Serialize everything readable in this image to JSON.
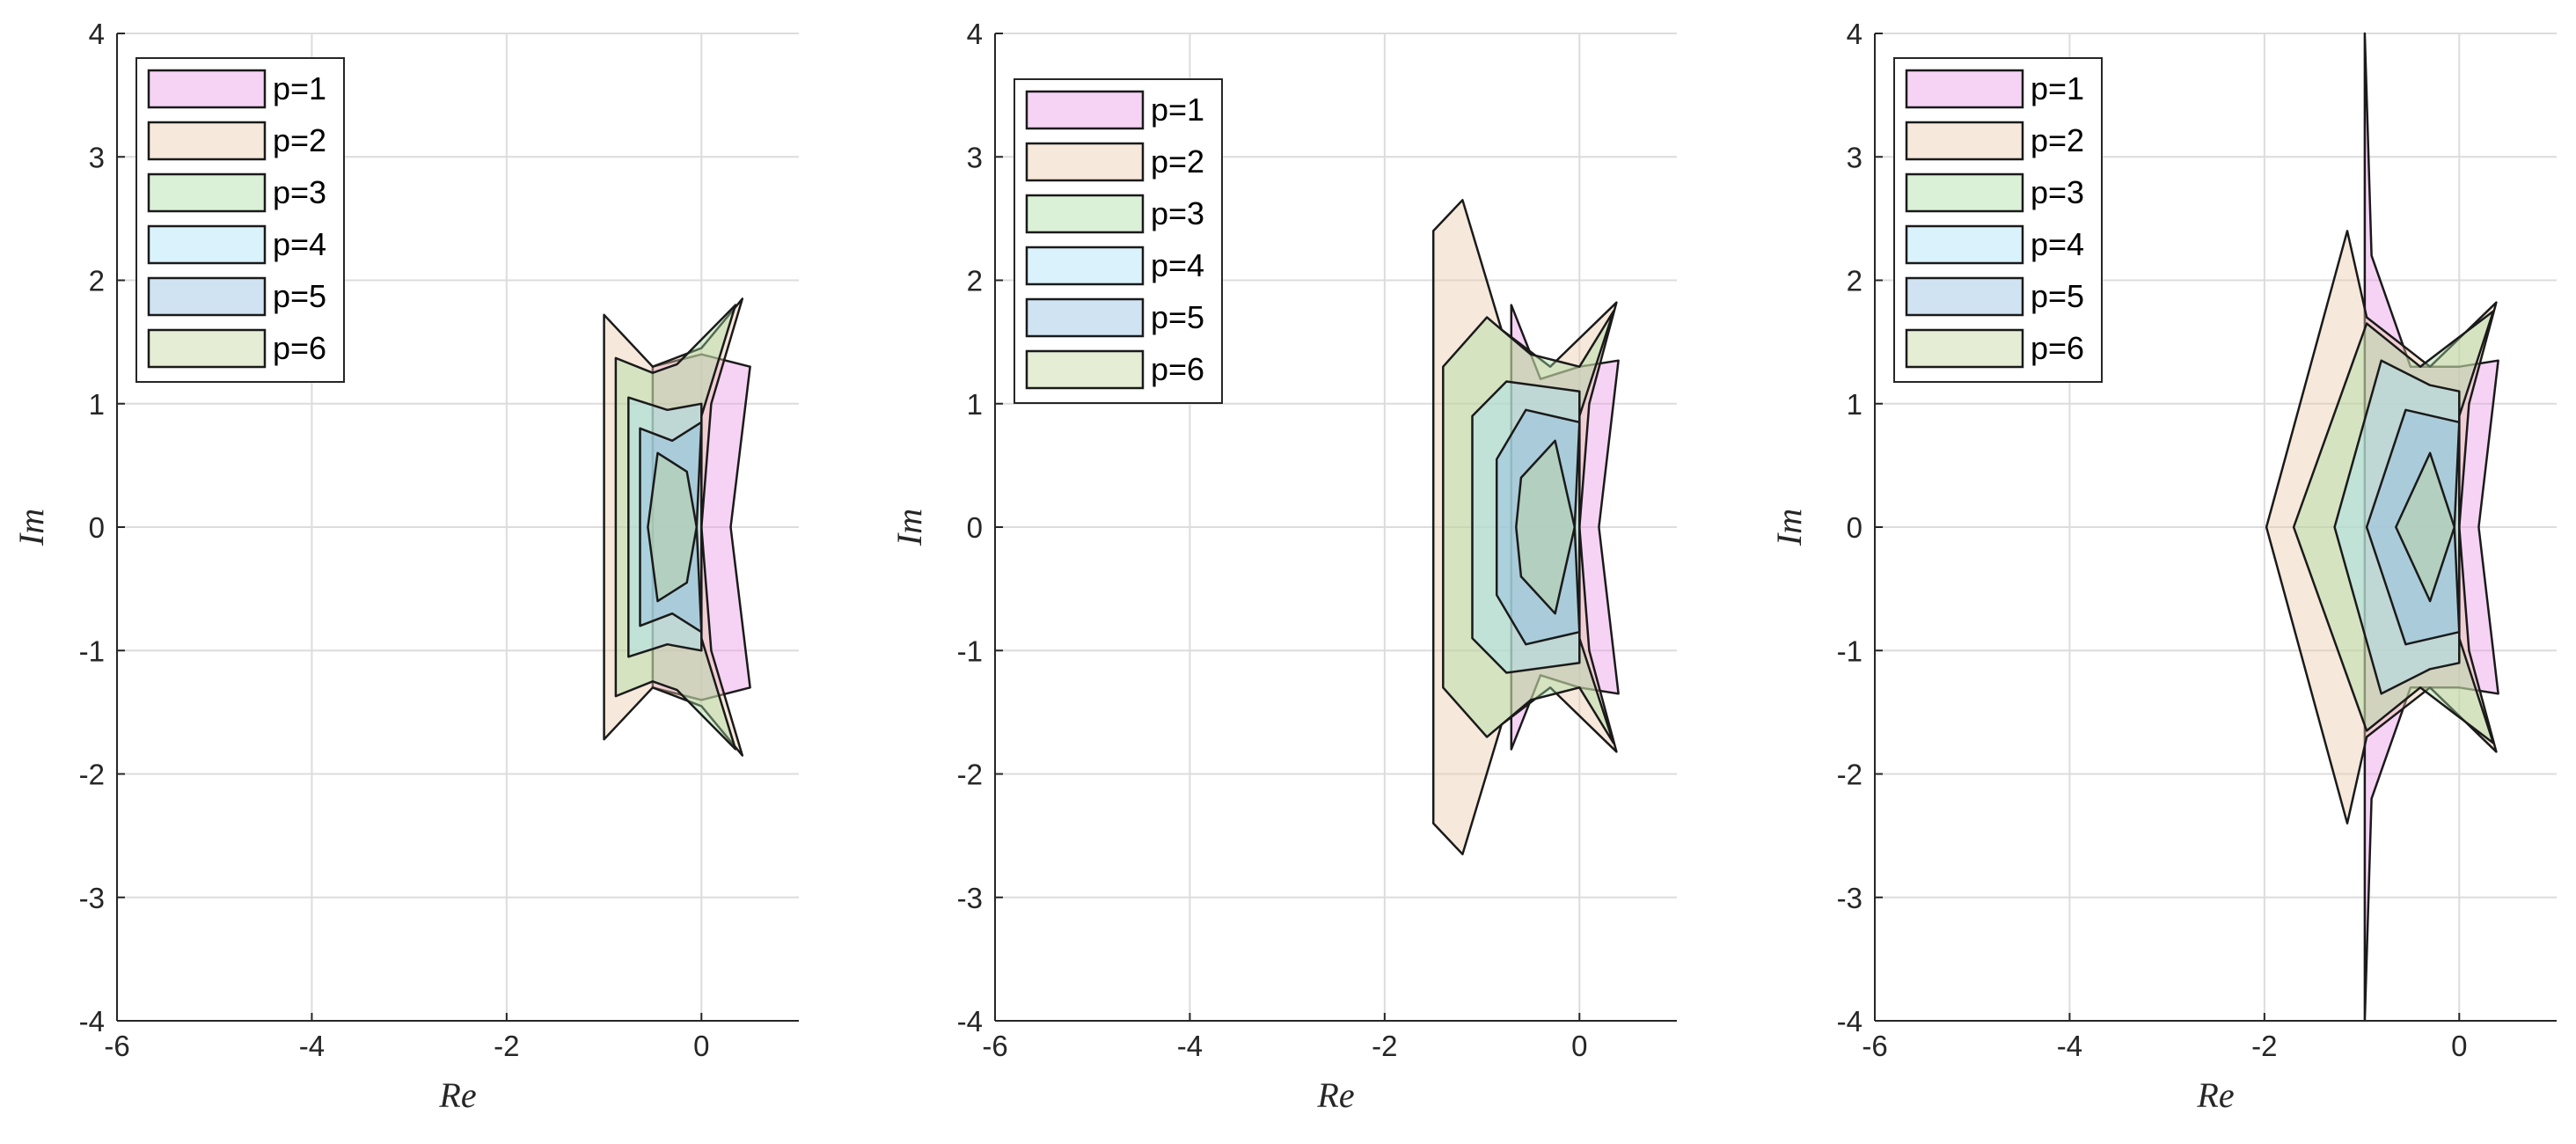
{
  "chart_data": [
    {
      "type": "area",
      "xlabel": "Re",
      "ylabel": "Im",
      "xlim": [
        -6,
        1
      ],
      "ylim": [
        -4,
        4
      ],
      "xticks": [
        -6,
        -4,
        -2,
        0
      ],
      "yticks": [
        -4,
        -3,
        -2,
        -1,
        0,
        1,
        2,
        3,
        4
      ],
      "grid": true,
      "legend_position": "top-left",
      "series": [
        {
          "name": "p=1",
          "color": "#ea95e5",
          "region": [
            [
              -0.5,
              1.3
            ],
            [
              0,
              1.4
            ],
            [
              0.5,
              1.3
            ],
            [
              0.3,
              0
            ],
            [
              0.5,
              -1.3
            ],
            [
              0,
              -1.4
            ],
            [
              -0.5,
              -1.3
            ]
          ]
        },
        {
          "name": "p=2",
          "color": "#e9c9a8",
          "region": [
            [
              -1,
              1.72
            ],
            [
              -0.5,
              1.3
            ],
            [
              0,
              1.45
            ],
            [
              0.42,
              1.85
            ],
            [
              0.1,
              1
            ],
            [
              0,
              0
            ],
            [
              0.1,
              -1
            ],
            [
              0.42,
              -1.85
            ],
            [
              0,
              -1.45
            ],
            [
              -0.5,
              -1.3
            ],
            [
              -1,
              -1.72
            ]
          ]
        },
        {
          "name": "p=3",
          "color": "#a8dba0",
          "region": [
            [
              -0.88,
              1.37
            ],
            [
              -0.5,
              1.25
            ],
            [
              -0.25,
              1.32
            ],
            [
              0.35,
              1.8
            ],
            [
              0,
              0.9
            ],
            [
              0,
              -0.9
            ],
            [
              0.35,
              -1.8
            ],
            [
              -0.25,
              -1.32
            ],
            [
              -0.5,
              -1.25
            ],
            [
              -0.88,
              -1.37
            ]
          ]
        },
        {
          "name": "p=4",
          "color": "#a6dff5",
          "region": [
            [
              -0.75,
              1.05
            ],
            [
              -0.35,
              0.95
            ],
            [
              0,
              1.0
            ],
            [
              0,
              -1.0
            ],
            [
              -0.35,
              -0.95
            ],
            [
              -0.75,
              -1.05
            ]
          ]
        },
        {
          "name": "p=5",
          "color": "#8cbde3",
          "region": [
            [
              -0.63,
              0.8
            ],
            [
              -0.3,
              0.7
            ],
            [
              0,
              0.85
            ],
            [
              -0.05,
              0
            ],
            [
              0,
              -0.85
            ],
            [
              -0.3,
              -0.7
            ],
            [
              -0.63,
              -0.8
            ]
          ]
        },
        {
          "name": "p=6",
          "color": "#c2d49c",
          "region": [
            [
              -0.45,
              0.6
            ],
            [
              -0.15,
              0.45
            ],
            [
              -0.05,
              0
            ],
            [
              -0.15,
              -0.45
            ],
            [
              -0.45,
              -0.6
            ],
            [
              -0.55,
              0
            ]
          ]
        }
      ]
    },
    {
      "type": "area",
      "xlabel": "Re",
      "ylabel": "Im",
      "xlim": [
        -6,
        1
      ],
      "ylim": [
        -4,
        4
      ],
      "xticks": [
        -6,
        -4,
        -2,
        0
      ],
      "yticks": [
        -4,
        -3,
        -2,
        -1,
        0,
        1,
        2,
        3,
        4
      ],
      "grid": true,
      "legend_position": "top-left",
      "series": [
        {
          "name": "p=1",
          "color": "#ea95e5",
          "region": [
            [
              -0.7,
              1.8
            ],
            [
              -0.4,
              1.2
            ],
            [
              0,
              1.3
            ],
            [
              0.4,
              1.35
            ],
            [
              0.2,
              0
            ],
            [
              0.4,
              -1.35
            ],
            [
              0,
              -1.3
            ],
            [
              -0.4,
              -1.2
            ],
            [
              -0.7,
              -1.8
            ]
          ]
        },
        {
          "name": "p=2",
          "color": "#e9c9a8",
          "region": [
            [
              -1.5,
              2.4
            ],
            [
              -1.2,
              2.65
            ],
            [
              -0.8,
              1.6
            ],
            [
              -0.3,
              1.3
            ],
            [
              0.38,
              1.82
            ],
            [
              0.1,
              1
            ],
            [
              0,
              0
            ],
            [
              0.1,
              -1
            ],
            [
              0.38,
              -1.82
            ],
            [
              -0.3,
              -1.3
            ],
            [
              -0.8,
              -1.6
            ],
            [
              -1.2,
              -2.65
            ],
            [
              -1.5,
              -2.4
            ]
          ]
        },
        {
          "name": "p=3",
          "color": "#a8dba0",
          "region": [
            [
              -1.4,
              1.3
            ],
            [
              -0.95,
              1.7
            ],
            [
              -0.5,
              1.4
            ],
            [
              0,
              1.3
            ],
            [
              0.35,
              1.75
            ],
            [
              0,
              0.9
            ],
            [
              0,
              -0.9
            ],
            [
              0.35,
              -1.75
            ],
            [
              0,
              -1.3
            ],
            [
              -0.5,
              -1.4
            ],
            [
              -0.95,
              -1.7
            ],
            [
              -1.4,
              -1.3
            ]
          ]
        },
        {
          "name": "p=4",
          "color": "#a6dff5",
          "region": [
            [
              -1.1,
              0.9
            ],
            [
              -0.75,
              1.18
            ],
            [
              0,
              1.1
            ],
            [
              0,
              -1.1
            ],
            [
              -0.75,
              -1.18
            ],
            [
              -1.1,
              -0.9
            ]
          ]
        },
        {
          "name": "p=5",
          "color": "#8cbde3",
          "region": [
            [
              -0.85,
              0.55
            ],
            [
              -0.55,
              0.95
            ],
            [
              0,
              0.85
            ],
            [
              -0.05,
              0
            ],
            [
              0,
              -0.85
            ],
            [
              -0.55,
              -0.95
            ],
            [
              -0.85,
              -0.55
            ]
          ]
        },
        {
          "name": "p=6",
          "color": "#c2d49c",
          "region": [
            [
              -0.6,
              0.4
            ],
            [
              -0.25,
              0.7
            ],
            [
              -0.05,
              0
            ],
            [
              -0.25,
              -0.7
            ],
            [
              -0.6,
              -0.4
            ],
            [
              -0.65,
              0
            ]
          ]
        }
      ]
    },
    {
      "type": "area",
      "xlabel": "Re",
      "ylabel": "Im",
      "xlim": [
        -6,
        1
      ],
      "ylim": [
        -4,
        4
      ],
      "xticks": [
        -6,
        -4,
        -2,
        0
      ],
      "yticks": [
        -4,
        -3,
        -2,
        -1,
        0,
        1,
        2,
        3,
        4
      ],
      "grid": true,
      "legend_position": "top-left",
      "series": [
        {
          "name": "p=1",
          "color": "#ea95e5",
          "region": [
            [
              -0.97,
              4
            ],
            [
              -0.9,
              2.2
            ],
            [
              -0.5,
              1.3
            ],
            [
              0,
              1.3
            ],
            [
              0.4,
              1.35
            ],
            [
              0.2,
              0
            ],
            [
              0.4,
              -1.35
            ],
            [
              0,
              -1.3
            ],
            [
              -0.5,
              -1.3
            ],
            [
              -0.9,
              -2.2
            ],
            [
              -0.97,
              -4
            ]
          ]
        },
        {
          "name": "p=2",
          "color": "#e9c9a8",
          "region": [
            [
              -1.98,
              0
            ],
            [
              -1.15,
              2.4
            ],
            [
              -0.95,
              1.7
            ],
            [
              -0.3,
              1.3
            ],
            [
              0.38,
              1.82
            ],
            [
              0.1,
              1
            ],
            [
              0,
              0
            ],
            [
              0.1,
              -1
            ],
            [
              0.38,
              -1.82
            ],
            [
              -0.3,
              -1.3
            ],
            [
              -0.95,
              -1.7
            ],
            [
              -1.15,
              -2.4
            ]
          ]
        },
        {
          "name": "p=3",
          "color": "#a8dba0",
          "region": [
            [
              -1.7,
              0
            ],
            [
              -0.95,
              1.65
            ],
            [
              -0.4,
              1.3
            ],
            [
              0.35,
              1.75
            ],
            [
              0,
              0.9
            ],
            [
              0,
              -0.9
            ],
            [
              0.35,
              -1.75
            ],
            [
              -0.4,
              -1.3
            ],
            [
              -0.95,
              -1.65
            ]
          ]
        },
        {
          "name": "p=4",
          "color": "#a6dff5",
          "region": [
            [
              -1.28,
              0
            ],
            [
              -0.8,
              1.35
            ],
            [
              -0.3,
              1.15
            ],
            [
              0,
              1.1
            ],
            [
              0,
              -1.1
            ],
            [
              -0.3,
              -1.15
            ],
            [
              -0.8,
              -1.35
            ]
          ]
        },
        {
          "name": "p=5",
          "color": "#8cbde3",
          "region": [
            [
              -0.95,
              0
            ],
            [
              -0.55,
              0.95
            ],
            [
              0,
              0.85
            ],
            [
              -0.05,
              0
            ],
            [
              0,
              -0.85
            ],
            [
              -0.55,
              -0.95
            ]
          ]
        },
        {
          "name": "p=6",
          "color": "#c2d49c",
          "region": [
            [
              -0.65,
              0
            ],
            [
              -0.3,
              0.6
            ],
            [
              -0.05,
              0
            ],
            [
              -0.3,
              -0.6
            ]
          ]
        }
      ]
    }
  ]
}
